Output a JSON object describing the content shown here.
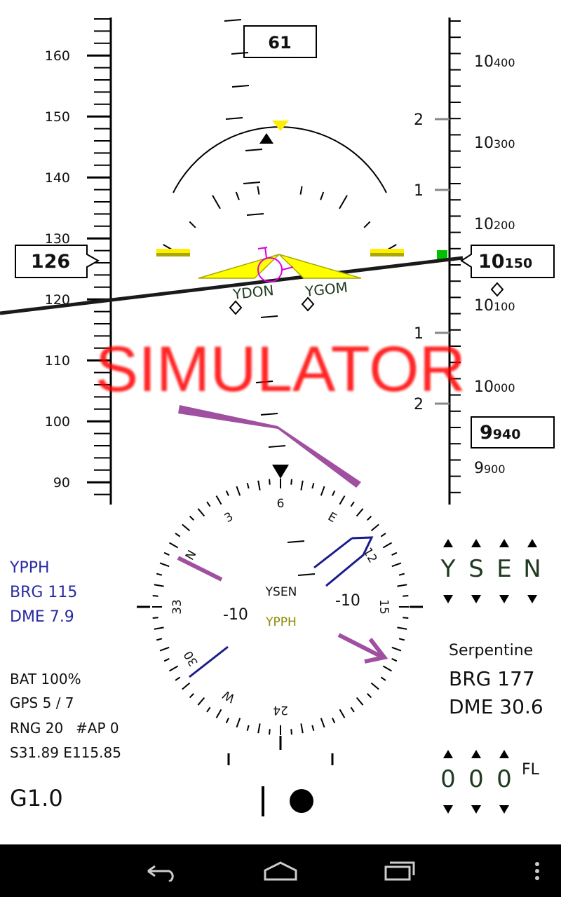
{
  "airspeed_tape": {
    "ticks": [
      "160",
      "150",
      "140",
      "130",
      "120",
      "110",
      "100",
      "90"
    ],
    "current_speed": "126"
  },
  "altitude_tape": {
    "ticks": [
      "10400",
      "10300",
      "10200",
      "10100",
      "10000",
      "9900"
    ],
    "tick_mains": [
      "10",
      "10",
      "10",
      "10",
      "10",
      "9"
    ],
    "tick_smalls": [
      "400",
      "300",
      "200",
      "100",
      "000",
      "900"
    ],
    "current_main": "10",
    "current_small": "150",
    "target_main": "9",
    "target_small": "940"
  },
  "vsi_scale": [
    "2",
    "1",
    "1",
    "2"
  ],
  "heading_top": "61",
  "waypoints": [
    "YDON",
    "YGOM"
  ],
  "simulator_banner": "SIMULATOR",
  "compass": {
    "labels": [
      "6",
      "E",
      "12",
      "15",
      "24",
      "W",
      "30",
      "33",
      "N",
      "3"
    ],
    "center_top": "YSEN",
    "center_bottom": "YPPH",
    "left_value": "-10",
    "right_value": "-10"
  },
  "nav_info": {
    "waypoint": "YPPH",
    "brg": "BRG 115",
    "dme": "DME 7.9"
  },
  "status": {
    "battery": "BAT 100%",
    "gps": "GPS 5 / 7",
    "range": "RNG 20",
    "ap": "#AP 0",
    "position": "S31.89 E115.85",
    "g_load": "G1.0"
  },
  "destination_selector": {
    "letters": [
      "Y",
      "S",
      "E",
      "N"
    ]
  },
  "destination_info": {
    "name": "Serpentine",
    "brg": "BRG 177",
    "dme": "DME 30.6"
  },
  "flight_level": {
    "digits": [
      "0",
      "0",
      "0"
    ],
    "unit": "FL"
  },
  "colors": {
    "horizon": "#1a1a1a",
    "aircraft_symbol": "#ffff00",
    "aircraft_symbol_edge": "#a8a800",
    "simulator_text": "#ff0000",
    "nav_blue": "#1a1a8c",
    "course_purple": "#a050a0",
    "flight_director_magenta": "#dd00dd",
    "altitude_bug_green": "#00c000",
    "selector_letters": "#1f3a1f"
  }
}
